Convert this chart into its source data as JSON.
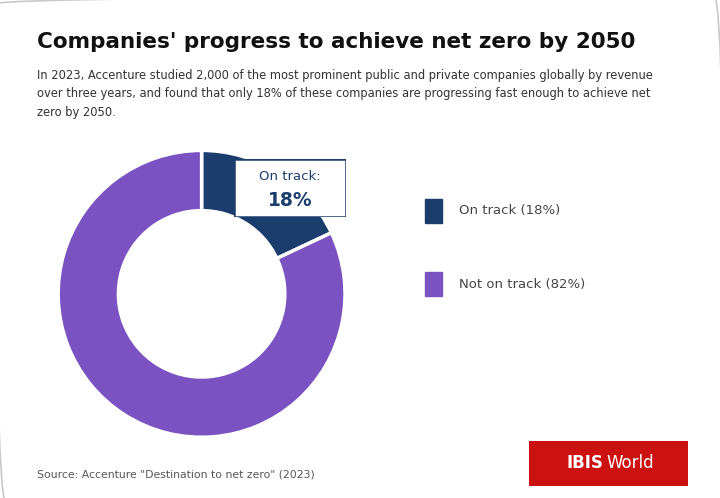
{
  "title": "Companies' progress to achieve net zero by 2050",
  "subtitle": "In 2023, Accenture studied 2,000 of the most prominent public and private companies globally by revenue\nover three years, and found that only 18% of these companies are progressing fast enough to achieve net\nzero by 2050.",
  "values": [
    18,
    82
  ],
  "colors": [
    "#1b3d6e",
    "#7b52c1"
  ],
  "labels": [
    "On track (18%)",
    "Not on track (82%)"
  ],
  "annotation_line1": "On track:",
  "annotation_line2": "18%",
  "source_text": "Source: Accenture \"Destination to net zero\" (2023)",
  "background_color": "#ffffff",
  "donut_width": 0.42,
  "start_angle": 90
}
